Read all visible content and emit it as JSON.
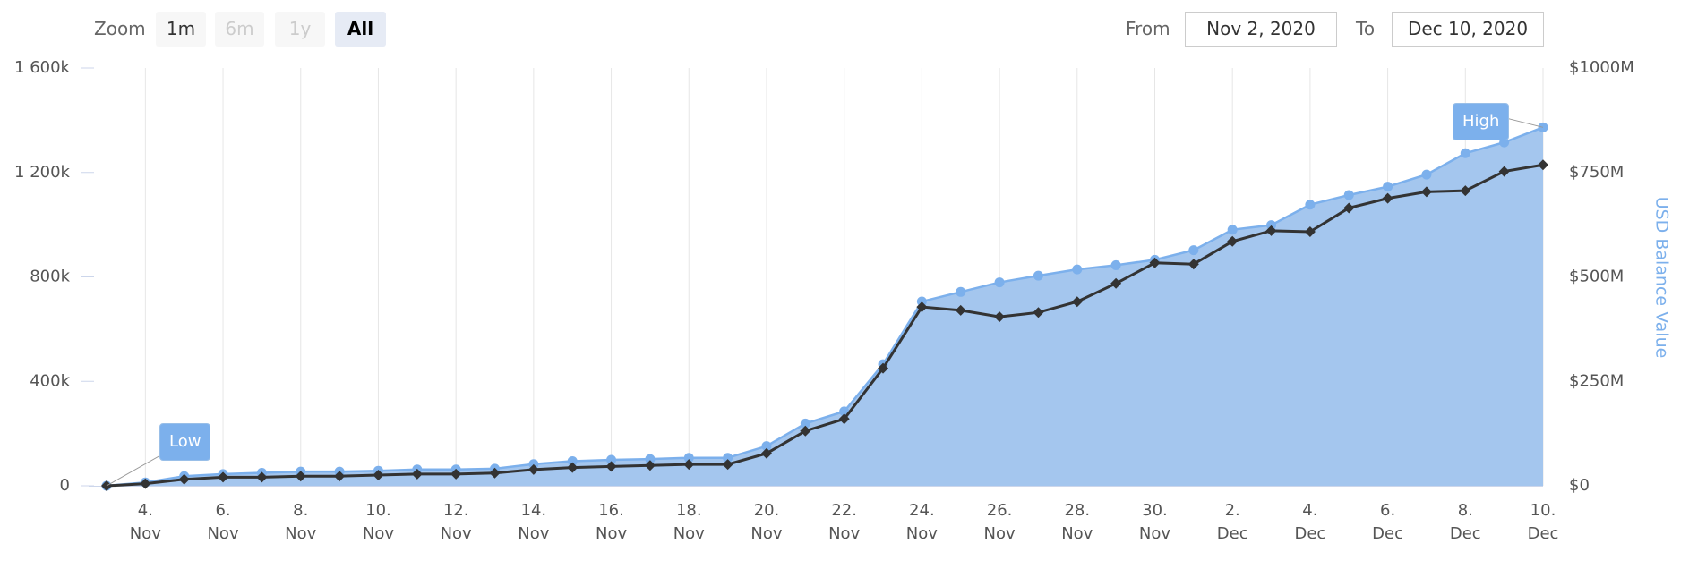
{
  "ui": {
    "zoom_label": "Zoom",
    "zoom_buttons": [
      "1m",
      "6m",
      "1y",
      "All"
    ],
    "from_label": "From",
    "from_value": "Nov 2, 2020",
    "to_label": "To",
    "to_value": "Dec 10, 2020"
  },
  "chart_data": {
    "type": "line-area",
    "categories": [
      null,
      "4. Nov",
      null,
      "6. Nov",
      null,
      "8. Nov",
      null,
      "10. Nov",
      null,
      "12. Nov",
      null,
      "14. Nov",
      null,
      "16. Nov",
      null,
      "18. Nov",
      null,
      "20. Nov",
      null,
      "22. Nov",
      null,
      "24. Nov",
      null,
      "26. Nov",
      null,
      "28. Nov",
      null,
      "30. Nov",
      null,
      "2. Dec",
      null,
      "4. Dec",
      null,
      "6. Dec",
      null,
      "8. Dec",
      null,
      "10. Dec"
    ],
    "series": [
      {
        "name": "USD Balance Value",
        "type": "area",
        "axis": "y2",
        "color": "#7cb0ec",
        "fill": "#a4c6ee",
        "values": [
          0,
          8000000,
          23000000,
          28000000,
          31000000,
          34000000,
          34000000,
          36000000,
          39000000,
          39000000,
          41000000,
          52000000,
          59000000,
          62000000,
          64000000,
          67000000,
          67000000,
          95000000,
          149000000,
          178000000,
          291000000,
          441000000,
          464000000,
          487000000,
          503000000,
          518000000,
          528000000,
          541000000,
          564000000,
          613000000,
          624000000,
          673000000,
          696000000,
          716000000,
          745000000,
          796000000,
          822000000,
          858000000
        ]
      },
      {
        "type": "line",
        "color": "#333333",
        "values": [
          0,
          8000,
          25000,
          33000,
          33000,
          37000,
          37000,
          41000,
          45000,
          45000,
          49000,
          62000,
          70000,
          74000,
          78000,
          82000,
          82000,
          124000,
          210000,
          256000,
          450000,
          685000,
          672000,
          647000,
          664000,
          705000,
          775000,
          854000,
          849000,
          936000,
          977000,
          973000,
          1064000,
          1101000,
          1126000,
          1130000,
          1204000,
          1229000
        ]
      }
    ],
    "ylim": [
      0,
      1600000
    ],
    "yticks": [
      0,
      {
        "value": 400000,
        "label": "400k"
      },
      {
        "value": 800000,
        "label": "800k"
      },
      {
        "value": 1200000,
        "label": "1 200k"
      },
      {
        "value": 1600000,
        "label": "1 600k"
      }
    ],
    "y2lim": [
      0,
      1000000000
    ],
    "y2ticks": [
      {
        "value": 0,
        "label": "$0"
      },
      {
        "value": 250000000,
        "label": "$250M"
      },
      {
        "value": 500000000,
        "label": "$500M"
      },
      {
        "value": 750000000,
        "label": "$750M"
      },
      {
        "value": 1000000000,
        "label": "$1000M"
      }
    ],
    "y2label": "USD Balance Value",
    "low_flag": "Low",
    "high_flag": "High",
    "grid": "x"
  }
}
